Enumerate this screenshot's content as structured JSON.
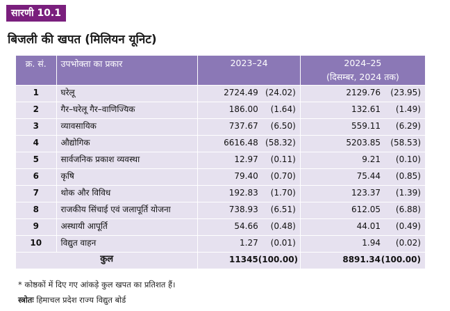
{
  "tag": "सारणी 10.1",
  "title": "बिजली की खपत (मिलियन यूनिट)",
  "columns": {
    "sn": "क्र. सं.",
    "type": "उपभोक्ता का प्रकार",
    "y1": "2023–24",
    "y2": "2024–25",
    "y2_sub": "(दिसम्बर, 2024 तक)"
  },
  "rows": [
    {
      "sn": "1",
      "type": "घरेलू",
      "v1": "2724.49",
      "p1": "(24.02)",
      "v2": "2129.76",
      "p2": "(23.95)"
    },
    {
      "sn": "2",
      "type": "गैर–घरेलू गैर–वाणिज्यिक",
      "v1": "186.00",
      "p1": "(1.64)",
      "v2": "132.61",
      "p2": "(1.49)"
    },
    {
      "sn": "3",
      "type": "व्यावसायिक",
      "v1": "737.67",
      "p1": "(6.50)",
      "v2": "559.11",
      "p2": "(6.29)"
    },
    {
      "sn": "4",
      "type": "औद्योगिक",
      "v1": "6616.48",
      "p1": "(58.32)",
      "v2": "5203.85",
      "p2": "(58.53)"
    },
    {
      "sn": "5",
      "type": "सार्वजनिक प्रकाश व्यवस्था",
      "v1": "12.97",
      "p1": "(0.11)",
      "v2": "9.21",
      "p2": "(0.10)"
    },
    {
      "sn": "6",
      "type": "कृषि",
      "v1": "79.40",
      "p1": "(0.70)",
      "v2": "75.44",
      "p2": "(0.85)"
    },
    {
      "sn": "7",
      "type": "थोक और विविध",
      "v1": "192.83",
      "p1": "(1.70)",
      "v2": "123.37",
      "p2": "(1.39)"
    },
    {
      "sn": "8",
      "type": "राजकीय सिंचाई एवं जलापूर्ति योजना",
      "v1": "738.93",
      "p1": "(6.51)",
      "v2": "612.05",
      "p2": "(6.88)"
    },
    {
      "sn": "9",
      "type": "अस्थायी आपूर्ति",
      "v1": "54.66",
      "p1": "(0.48)",
      "v2": "44.01",
      "p2": "(0.49)"
    },
    {
      "sn": "10",
      "type": "विद्युत वाहन",
      "v1": "1.27",
      "p1": "(0.01)",
      "v2": "1.94",
      "p2": "(0.02)"
    }
  ],
  "total": {
    "label": "कुल",
    "v1": "11345",
    "p1": "(100.00)",
    "v2": "8891.34",
    "p2": "(100.00)"
  },
  "note": "* कोष्ठकों में दिए गए आंकड़े कुल खपत का प्रतिशत हैं।",
  "source_label": "स्त्रोतः",
  "source": " हिमाचल प्रदेश राज्य विद्युत बोर्ड"
}
